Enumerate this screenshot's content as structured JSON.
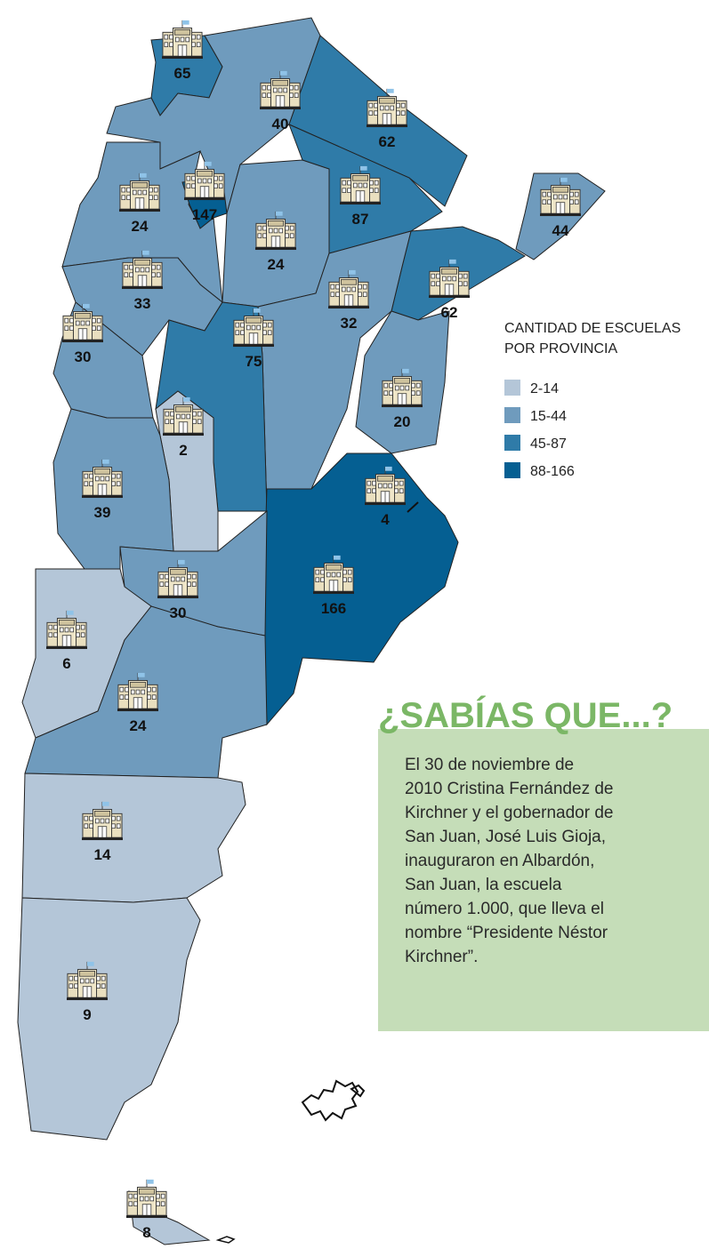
{
  "map": {
    "provinces": [
      {
        "value": 65,
        "color": "#2f7ba8"
      },
      {
        "value": 40,
        "color": "#6f9bbd"
      },
      {
        "value": 62,
        "color": "#2f7ba8"
      },
      {
        "value": 24,
        "color": "#6f9bbd"
      },
      {
        "value": 147,
        "color": "#055f92"
      },
      {
        "value": 24,
        "color": "#6f9bbd"
      },
      {
        "value": 87,
        "color": "#2f7ba8"
      },
      {
        "value": 44,
        "color": "#6f9bbd"
      },
      {
        "value": 33,
        "color": "#6f9bbd"
      },
      {
        "value": 62,
        "color": "#2f7ba8"
      },
      {
        "value": 30,
        "color": "#6f9bbd"
      },
      {
        "value": 32,
        "color": "#6f9bbd"
      },
      {
        "value": 75,
        "color": "#2f7ba8"
      },
      {
        "value": 20,
        "color": "#6f9bbd"
      },
      {
        "value": 2,
        "color": "#b4c6d8"
      },
      {
        "value": 39,
        "color": "#6f9bbd"
      },
      {
        "value": 4,
        "color": "#b4c6d8"
      },
      {
        "value": 166,
        "color": "#055f92"
      },
      {
        "value": 30,
        "color": "#6f9bbd"
      },
      {
        "value": 6,
        "color": "#b4c6d8"
      },
      {
        "value": 24,
        "color": "#6f9bbd"
      },
      {
        "value": 14,
        "color": "#b4c6d8"
      },
      {
        "value": 9,
        "color": "#b4c6d8"
      },
      {
        "value": 8,
        "color": "#b4c6d8"
      }
    ],
    "legend": {
      "title": [
        "CANTIDAD DE ESCUELAS",
        "POR PROVINCIA"
      ],
      "items": [
        {
          "label": "2-14",
          "color": "#b4c6d8"
        },
        {
          "label": "15-44",
          "color": "#6f9bbd"
        },
        {
          "label": "45-87",
          "color": "#2f7ba8"
        },
        {
          "label": "88-166",
          "color": "#055f92"
        }
      ]
    }
  },
  "info": {
    "heading": "¿SABÍAS QUE...?",
    "lines": [
      "El 30 de noviembre de",
      "2010 Cristina Fernández de",
      "Kirchner y el gobernador de",
      "San Juan,  José Luis Gioja,",
      "inauguraron en Albardón,",
      "San Juan, la escuela",
      "número 1.000,  que lleva el",
      "nombre “Presidente Néstor",
      "Kirchner”."
    ]
  }
}
